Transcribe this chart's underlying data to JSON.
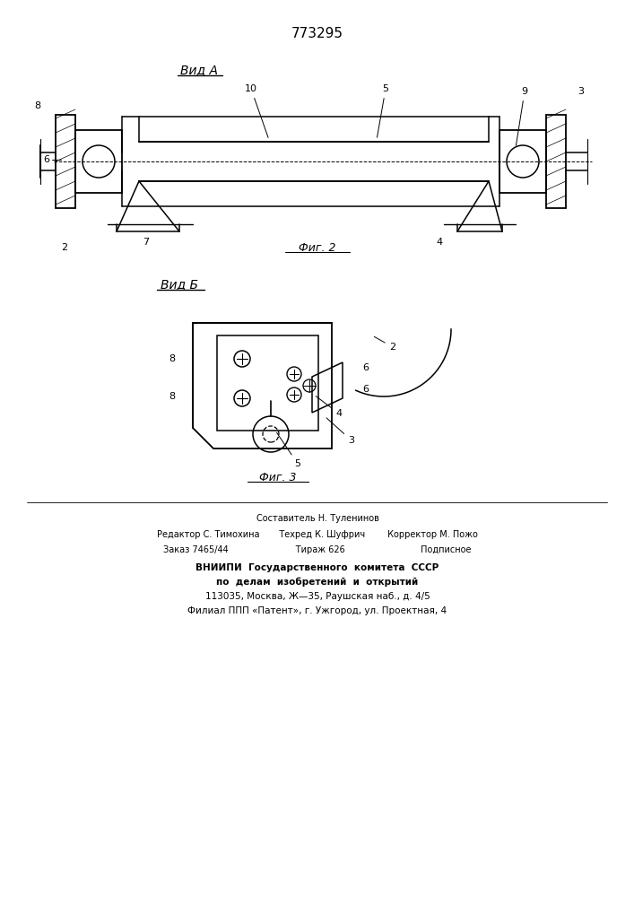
{
  "patent_number": "773295",
  "fig2_label": "Фиг. 2",
  "fig3_label": "Фиг. 3",
  "view_a_label": "Вид А",
  "view_b_label": "Вид Б",
  "footer_lines": [
    "Составитель Н. Туленинов",
    "Редактор С. Тимохина       Техред К. Шуфрич       Корректор М. Пожо",
    "Заказ 7465/44                    Тираж 626                       Подписное",
    "ВНИИПИ  Государственного  комитета  СССР",
    "по  делам  изобретений  и  открытий",
    "113035, Москва, Ж—35, Раушская наб., д. 4/5",
    "Филиал ППП «Патент», г. Ужгород, ул. Проектная, 4"
  ],
  "bg_color": "#ffffff",
  "line_color": "#000000"
}
